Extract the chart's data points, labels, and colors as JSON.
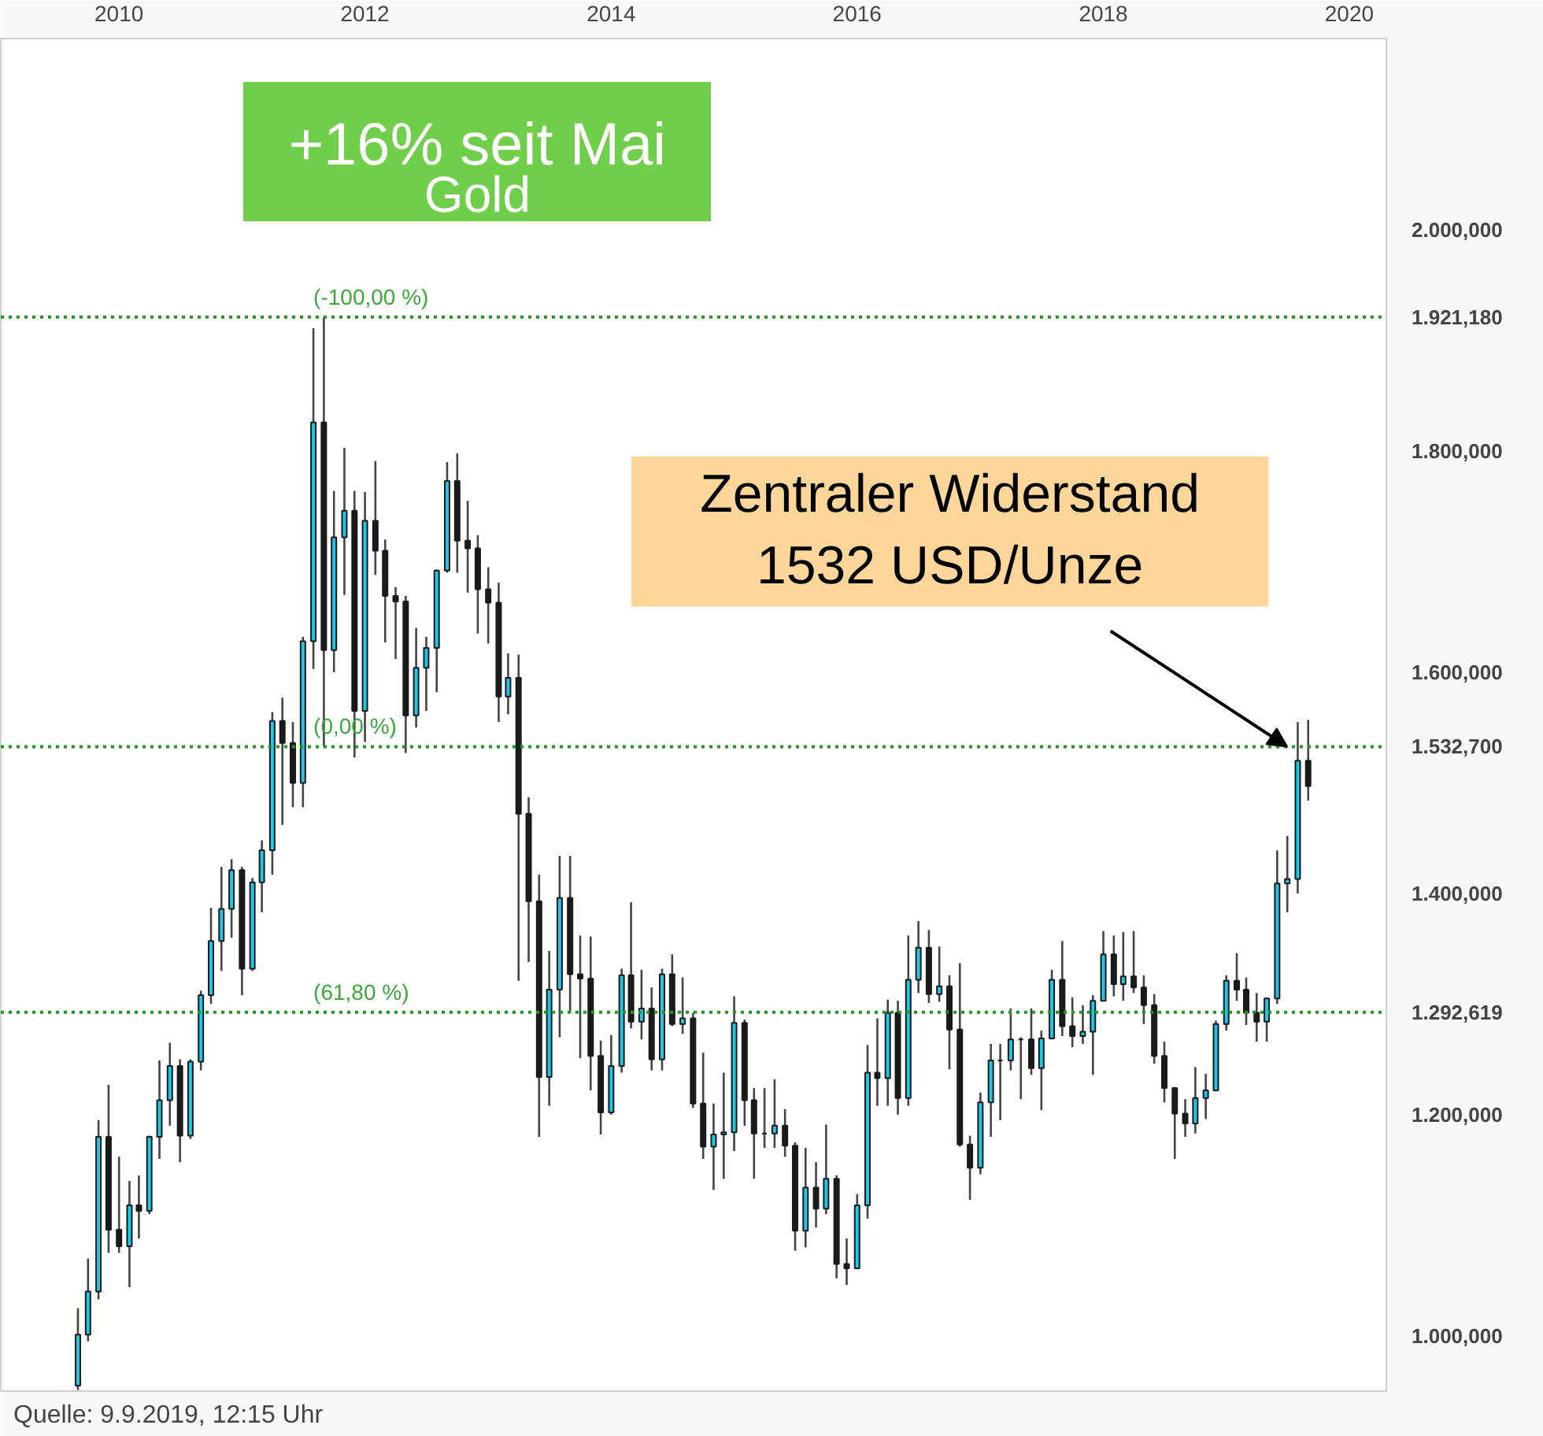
{
  "chart_data": {
    "type": "candlestick",
    "x": [
      "2009-09",
      "2009-10",
      "2009-11",
      "2009-12",
      "2010-01",
      "2010-02",
      "2010-03",
      "2010-04",
      "2010-05",
      "2010-06",
      "2010-07",
      "2010-08",
      "2010-09",
      "2010-10",
      "2010-11",
      "2010-12",
      "2011-01",
      "2011-02",
      "2011-03",
      "2011-04",
      "2011-05",
      "2011-06",
      "2011-07",
      "2011-08",
      "2011-09",
      "2011-10",
      "2011-11",
      "2011-12",
      "2012-01",
      "2012-02",
      "2012-03",
      "2012-04",
      "2012-05",
      "2012-06",
      "2012-07",
      "2012-08",
      "2012-09",
      "2012-10",
      "2012-11",
      "2012-12",
      "2013-01",
      "2013-02",
      "2013-03",
      "2013-04",
      "2013-05",
      "2013-06",
      "2013-07",
      "2013-08",
      "2013-09",
      "2013-10",
      "2013-11",
      "2013-12",
      "2014-01",
      "2014-02",
      "2014-03",
      "2014-04",
      "2014-05",
      "2014-06",
      "2014-07",
      "2014-08",
      "2014-09",
      "2014-10",
      "2014-11",
      "2014-12",
      "2015-01",
      "2015-02",
      "2015-03",
      "2015-04",
      "2015-05",
      "2015-06",
      "2015-07",
      "2015-08",
      "2015-09",
      "2015-10",
      "2015-11",
      "2015-12",
      "2016-01",
      "2016-02",
      "2016-03",
      "2016-04",
      "2016-05",
      "2016-06",
      "2016-07",
      "2016-08",
      "2016-09",
      "2016-10",
      "2016-11",
      "2016-12",
      "2017-01",
      "2017-02",
      "2017-03",
      "2017-04",
      "2017-05",
      "2017-06",
      "2017-07",
      "2017-08",
      "2017-09",
      "2017-10",
      "2017-11",
      "2017-12",
      "2018-01",
      "2018-02",
      "2018-03",
      "2018-04",
      "2018-05",
      "2018-06",
      "2018-07",
      "2018-08",
      "2018-09",
      "2018-10",
      "2018-11",
      "2018-12",
      "2019-01",
      "2019-02",
      "2019-03",
      "2019-04",
      "2019-05",
      "2019-06",
      "2019-07",
      "2019-08",
      "2019-09"
    ],
    "ohlc": [
      [
        955,
        1025,
        951,
        1001
      ],
      [
        1001,
        1070,
        995,
        1040
      ],
      [
        1040,
        1195,
        1033,
        1180
      ],
      [
        1180,
        1227,
        1075,
        1096
      ],
      [
        1096,
        1162,
        1075,
        1081
      ],
      [
        1081,
        1140,
        1044,
        1118
      ],
      [
        1118,
        1145,
        1088,
        1113
      ],
      [
        1113,
        1181,
        1110,
        1180
      ],
      [
        1180,
        1249,
        1160,
        1213
      ],
      [
        1213,
        1265,
        1190,
        1244
      ],
      [
        1244,
        1250,
        1157,
        1181
      ],
      [
        1181,
        1250,
        1178,
        1248
      ],
      [
        1248,
        1312,
        1240,
        1308
      ],
      [
        1308,
        1387,
        1300,
        1357
      ],
      [
        1357,
        1424,
        1330,
        1386
      ],
      [
        1386,
        1431,
        1360,
        1421
      ],
      [
        1421,
        1424,
        1308,
        1332
      ],
      [
        1332,
        1414,
        1330,
        1410
      ],
      [
        1410,
        1448,
        1383,
        1439
      ],
      [
        1439,
        1564,
        1417,
        1556
      ],
      [
        1556,
        1577,
        1462,
        1536
      ],
      [
        1536,
        1555,
        1478,
        1500
      ],
      [
        1500,
        1632,
        1478,
        1628
      ],
      [
        1628,
        1911,
        1603,
        1826
      ],
      [
        1826,
        1921,
        1533,
        1620
      ],
      [
        1620,
        1764,
        1600,
        1722
      ],
      [
        1722,
        1803,
        1670,
        1746
      ],
      [
        1746,
        1764,
        1523,
        1565
      ],
      [
        1565,
        1763,
        1537,
        1737
      ],
      [
        1737,
        1791,
        1688,
        1710
      ],
      [
        1710,
        1720,
        1627,
        1669
      ],
      [
        1669,
        1677,
        1612,
        1664
      ],
      [
        1664,
        1669,
        1527,
        1561
      ],
      [
        1561,
        1640,
        1550,
        1604
      ],
      [
        1604,
        1632,
        1565,
        1622
      ],
      [
        1622,
        1693,
        1582,
        1692
      ],
      [
        1692,
        1790,
        1690,
        1773
      ],
      [
        1773,
        1798,
        1690,
        1719
      ],
      [
        1719,
        1755,
        1672,
        1712
      ],
      [
        1712,
        1724,
        1635,
        1675
      ],
      [
        1675,
        1695,
        1626,
        1663
      ],
      [
        1663,
        1681,
        1555,
        1578
      ],
      [
        1578,
        1617,
        1562,
        1595
      ],
      [
        1595,
        1616,
        1321,
        1472
      ],
      [
        1472,
        1487,
        1338,
        1393
      ],
      [
        1393,
        1417,
        1180,
        1234
      ],
      [
        1234,
        1348,
        1208,
        1313
      ],
      [
        1313,
        1434,
        1270,
        1396
      ],
      [
        1396,
        1434,
        1292,
        1327
      ],
      [
        1327,
        1362,
        1251,
        1323
      ],
      [
        1323,
        1361,
        1222,
        1253
      ],
      [
        1253,
        1267,
        1182,
        1202
      ],
      [
        1202,
        1272,
        1200,
        1244
      ],
      [
        1244,
        1332,
        1238,
        1326
      ],
      [
        1326,
        1392,
        1278,
        1284
      ],
      [
        1284,
        1331,
        1268,
        1296
      ],
      [
        1296,
        1315,
        1240,
        1250
      ],
      [
        1250,
        1332,
        1240,
        1327
      ],
      [
        1327,
        1345,
        1280,
        1282
      ],
      [
        1282,
        1324,
        1273,
        1287
      ],
      [
        1287,
        1292,
        1206,
        1210
      ],
      [
        1210,
        1256,
        1160,
        1171
      ],
      [
        1171,
        1210,
        1132,
        1182
      ],
      [
        1182,
        1238,
        1142,
        1184
      ],
      [
        1184,
        1307,
        1167,
        1283
      ],
      [
        1283,
        1286,
        1190,
        1213
      ],
      [
        1213,
        1224,
        1142,
        1183
      ],
      [
        1183,
        1224,
        1170,
        1183
      ],
      [
        1183,
        1232,
        1170,
        1190
      ],
      [
        1190,
        1205,
        1162,
        1172
      ],
      [
        1172,
        1175,
        1077,
        1095
      ],
      [
        1095,
        1170,
        1080,
        1134
      ],
      [
        1134,
        1157,
        1098,
        1115
      ],
      [
        1115,
        1191,
        1110,
        1142
      ],
      [
        1142,
        1145,
        1052,
        1065
      ],
      [
        1065,
        1088,
        1046,
        1061
      ],
      [
        1061,
        1128,
        1061,
        1118
      ],
      [
        1118,
        1263,
        1106,
        1238
      ],
      [
        1238,
        1287,
        1208,
        1233
      ],
      [
        1233,
        1304,
        1208,
        1292
      ],
      [
        1292,
        1303,
        1200,
        1215
      ],
      [
        1215,
        1362,
        1208,
        1322
      ],
      [
        1322,
        1375,
        1310,
        1351
      ],
      [
        1351,
        1367,
        1301,
        1309
      ],
      [
        1309,
        1352,
        1302,
        1316
      ],
      [
        1316,
        1326,
        1241,
        1277
      ],
      [
        1277,
        1337,
        1171,
        1173
      ],
      [
        1173,
        1181,
        1123,
        1152
      ],
      [
        1152,
        1220,
        1146,
        1211
      ],
      [
        1211,
        1264,
        1180,
        1249
      ],
      [
        1249,
        1264,
        1195,
        1249
      ],
      [
        1249,
        1296,
        1240,
        1268
      ],
      [
        1268,
        1270,
        1214,
        1268
      ],
      [
        1268,
        1296,
        1236,
        1242
      ],
      [
        1242,
        1276,
        1204,
        1269
      ],
      [
        1269,
        1331,
        1268,
        1322
      ],
      [
        1322,
        1357,
        1271,
        1280
      ],
      [
        1280,
        1306,
        1261,
        1271
      ],
      [
        1271,
        1299,
        1264,
        1275
      ],
      [
        1275,
        1308,
        1236,
        1303
      ],
      [
        1303,
        1366,
        1303,
        1345
      ],
      [
        1345,
        1362,
        1307,
        1318
      ],
      [
        1318,
        1365,
        1303,
        1325
      ],
      [
        1325,
        1366,
        1310,
        1315
      ],
      [
        1315,
        1326,
        1282,
        1299
      ],
      [
        1299,
        1309,
        1246,
        1253
      ],
      [
        1253,
        1266,
        1211,
        1224
      ],
      [
        1224,
        1225,
        1160,
        1201
      ],
      [
        1201,
        1214,
        1180,
        1192
      ],
      [
        1192,
        1243,
        1183,
        1215
      ],
      [
        1215,
        1237,
        1196,
        1222
      ],
      [
        1222,
        1285,
        1221,
        1282
      ],
      [
        1282,
        1326,
        1276,
        1321
      ],
      [
        1321,
        1346,
        1303,
        1313
      ],
      [
        1313,
        1324,
        1281,
        1292
      ],
      [
        1292,
        1310,
        1266,
        1284
      ],
      [
        1284,
        1306,
        1266,
        1305
      ],
      [
        1305,
        1439,
        1300,
        1409
      ],
      [
        1409,
        1452,
        1383,
        1413
      ],
      [
        1413,
        1555,
        1400,
        1520
      ],
      [
        1520,
        1557,
        1484,
        1497
      ]
    ],
    "xlim": [
      "2009-01-15",
      "2020-04-20"
    ],
    "xticks": [
      {
        "value": "2010-01-01",
        "label": "2010"
      },
      {
        "value": "2012-01-01",
        "label": "2012"
      },
      {
        "value": "2014-01-01",
        "label": "2014"
      },
      {
        "value": "2016-01-01",
        "label": "2016"
      },
      {
        "value": "2018-01-01",
        "label": "2018"
      },
      {
        "value": "2020-01-01",
        "label": "2020"
      }
    ],
    "ylim": [
      950,
      2173
    ],
    "yticks": [
      {
        "value": 1000,
        "label": "1.000,000"
      },
      {
        "value": 1200,
        "label": "1.200,000"
      },
      {
        "value": 1400,
        "label": "1.400,000"
      },
      {
        "value": 1600,
        "label": "1.600,000"
      },
      {
        "value": 1800,
        "label": "1.800,000"
      },
      {
        "value": 2000,
        "label": "2.000,000"
      }
    ],
    "ref_lines": [
      {
        "axis": "y",
        "value": 1921.18,
        "label": "1.921,180",
        "color": "#1e9a1e",
        "line_style": "dotted"
      },
      {
        "axis": "y",
        "value": 1532.7,
        "label": "1.532,700",
        "color": "#1e9a1e",
        "line_style": "dotted"
      },
      {
        "axis": "y",
        "value": 1292.619,
        "label": "1.292,619",
        "color": "#1e9a1e",
        "line_style": "dotted"
      }
    ],
    "annotations": [
      "+16% seit Mai",
      "Gold",
      {
        "text": "Zentraler Widerstand\n1532 USD/Unze",
        "x": "2019-07",
        "y": 1532.7
      },
      "Quelle: 9.9.2019, 12:15 Uhr",
      {
        "text": "(-100,00 %)",
        "x": "2011-08",
        "y": 1921.18
      },
      {
        "text": "(0,00 %)",
        "x": "2011-08",
        "y": 1532.7
      },
      {
        "text": "(61,80 %)",
        "x": "2011-08",
        "y": 1292.619
      }
    ],
    "grid": false
  }
}
